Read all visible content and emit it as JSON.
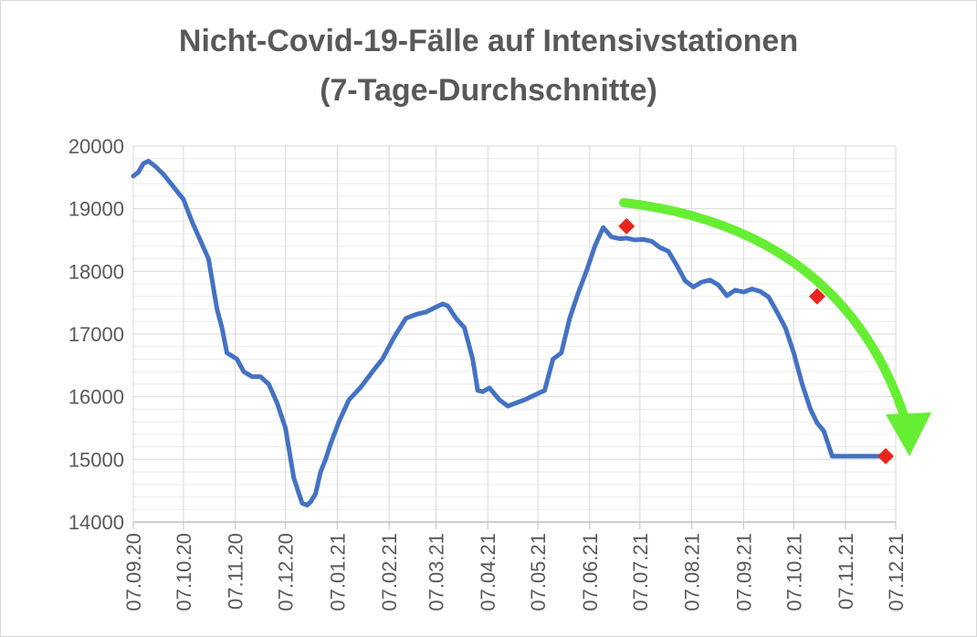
{
  "chart_data": {
    "type": "line",
    "title": "Nicht-Covid-19-Fälle auf Intensivstationen",
    "subtitle": "(7-Tage-Durchschnitte)",
    "xlabel": "",
    "ylabel": "",
    "ylim": [
      14000,
      20000
    ],
    "yticks": [
      "14000",
      "15000",
      "16000",
      "17000",
      "18000",
      "19000",
      "20000"
    ],
    "xticks": [
      "07.09.20",
      "07.10.20",
      "07.11.20",
      "07.12.20",
      "07.01.21",
      "07.02.21",
      "07.03.21",
      "07.04.21",
      "07.05.21",
      "07.06.21",
      "07.07.21",
      "07.08.21",
      "07.09.21",
      "07.10.21",
      "07.11.21",
      "07.12.21"
    ],
    "grid": true,
    "line_color": "#4472c4",
    "marker_color": "#e8251f",
    "arrow_color": "#66ee33",
    "series": [
      {
        "x": [
          "2020-09-07",
          "2020-09-10",
          "2020-09-13",
          "2020-09-16",
          "2020-09-20",
          "2020-09-25",
          "2020-10-01",
          "2020-10-07",
          "2020-10-12",
          "2020-10-17",
          "2020-10-22",
          "2020-10-27",
          "2020-10-30",
          "2020-11-02",
          "2020-11-05",
          "2020-11-08",
          "2020-11-12",
          "2020-11-17",
          "2020-11-22",
          "2020-11-27",
          "2020-12-02",
          "2020-12-07",
          "2020-12-12",
          "2020-12-17",
          "2020-12-20",
          "2020-12-22",
          "2020-12-25",
          "2020-12-28",
          "2020-12-31",
          "2021-01-03",
          "2021-01-08",
          "2021-01-14",
          "2021-01-21",
          "2021-01-28",
          "2021-02-03",
          "2021-02-10",
          "2021-02-17",
          "2021-02-24",
          "2021-03-01",
          "2021-03-07",
          "2021-03-11",
          "2021-03-14",
          "2021-03-19",
          "2021-03-24",
          "2021-03-29",
          "2021-04-01",
          "2021-04-04",
          "2021-04-08",
          "2021-04-14",
          "2021-04-19",
          "2021-04-24",
          "2021-04-29",
          "2021-05-03",
          "2021-05-07",
          "2021-05-11",
          "2021-05-16",
          "2021-05-21",
          "2021-05-26",
          "2021-05-31",
          "2021-06-05",
          "2021-06-10",
          "2021-06-15",
          "2021-06-20",
          "2021-06-25",
          "2021-06-29",
          "2021-07-04",
          "2021-07-09",
          "2021-07-14",
          "2021-07-19",
          "2021-07-24",
          "2021-07-29",
          "2021-08-03",
          "2021-08-08",
          "2021-08-13",
          "2021-08-18",
          "2021-08-23",
          "2021-08-28",
          "2021-09-02",
          "2021-09-07",
          "2021-09-12",
          "2021-09-17",
          "2021-09-22",
          "2021-09-27",
          "2021-10-02",
          "2021-10-07",
          "2021-10-12",
          "2021-10-17",
          "2021-10-21",
          "2021-10-25",
          "2021-10-30",
          "2021-11-04",
          "2021-11-08",
          "2021-11-13",
          "2021-11-18",
          "2021-11-23",
          "2021-11-28",
          "2021-12-02"
        ],
        "y": [
          19520,
          19580,
          19720,
          19760,
          19680,
          19550,
          19350,
          19150,
          18800,
          18500,
          18200,
          17400,
          17100,
          16700,
          16650,
          16600,
          16400,
          16320,
          16320,
          16200,
          15900,
          15500,
          14700,
          14300,
          14270,
          14320,
          14450,
          14800,
          15000,
          15250,
          15600,
          15950,
          16150,
          16400,
          16600,
          16950,
          17250,
          17320,
          17350,
          17430,
          17480,
          17450,
          17250,
          17100,
          16600,
          16100,
          16080,
          16140,
          15950,
          15850,
          15900,
          15950,
          16000,
          16050,
          16100,
          16600,
          16700,
          17250,
          17650,
          18000,
          18400,
          18700,
          18550,
          18520,
          18530,
          18500,
          18510,
          18480,
          18380,
          18320,
          18100,
          17850,
          17750,
          17830,
          17860,
          17780,
          17610,
          17700,
          17670,
          17720,
          17680,
          17590,
          17350,
          17100,
          16700,
          16200,
          15800,
          15580,
          15450,
          15050,
          15050,
          15050,
          15050,
          15050,
          15050,
          15050,
          15050
        ]
      }
    ],
    "markers": [
      {
        "x": "2021-06-29",
        "y": 18720
      },
      {
        "x": "2021-10-21",
        "y": 17600
      },
      {
        "x": "2021-12-01",
        "y": 15050
      }
    ]
  }
}
